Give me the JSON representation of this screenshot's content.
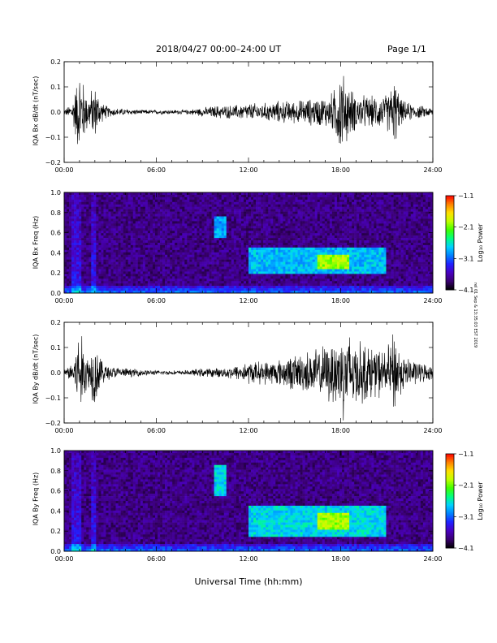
{
  "header": {
    "title": "2018/04/27   00:00–24:00 UT",
    "page": "Page 1/1"
  },
  "xlabel": "Universal Time (hh:mm)",
  "credit": "rel 01 Sep & 13:35:03 EST 2019",
  "colors": {
    "colormap": [
      "#000000",
      "#3a0070",
      "#4a00c0",
      "#2020ff",
      "#0080ff",
      "#00d0ff",
      "#00ff80",
      "#40ff00",
      "#c0ff00",
      "#ffe000",
      "#ff8000",
      "#ff0000"
    ],
    "trace": "#000000"
  },
  "chart_data": [
    {
      "type": "line",
      "panel": "timeseries",
      "ylabel": "IQA Bx dB/dt (nT/sec)",
      "xticks": [
        "00:00",
        "06:00",
        "12:00",
        "18:00",
        "24:00"
      ],
      "yticks": [
        "0.2",
        "0.1",
        "0.0",
        "−0.1",
        "−0.2"
      ],
      "xlim": [
        0,
        24
      ],
      "ylim": [
        -0.2,
        0.2
      ],
      "amplitude_envelope": {
        "hours": [
          0,
          0.5,
          1.0,
          1.5,
          2.0,
          2.5,
          3,
          4,
          5,
          6,
          7,
          8,
          9,
          10,
          11,
          12,
          13,
          14,
          15,
          16,
          17,
          17.5,
          18,
          18.5,
          19,
          20,
          21,
          21.5,
          22,
          23,
          24
        ],
        "values": [
          0.01,
          0.04,
          0.2,
          0.08,
          0.12,
          0.04,
          0.02,
          0.015,
          0.01,
          0.01,
          0.01,
          0.01,
          0.02,
          0.03,
          0.03,
          0.04,
          0.04,
          0.05,
          0.05,
          0.06,
          0.07,
          0.09,
          0.2,
          0.12,
          0.08,
          0.07,
          0.08,
          0.15,
          0.05,
          0.03,
          0.02
        ]
      }
    },
    {
      "type": "heatmap",
      "panel": "spectrogram",
      "ylabel": "IQA Bx Freq (Hz)",
      "xticks": [
        "00:00",
        "06:00",
        "12:00",
        "18:00",
        "24:00"
      ],
      "yticks": [
        "1.0",
        "0.8",
        "0.6",
        "0.4",
        "0.2",
        "0.0"
      ],
      "xlim": [
        0,
        24
      ],
      "ylim": [
        0,
        1.0
      ],
      "colorbar": {
        "label": "Log₁₀ Power",
        "ticks": [
          "−1.1",
          "−2.1",
          "−3.1",
          "−4.1"
        ],
        "range": [
          -4.1,
          -1.1
        ]
      },
      "features": [
        {
          "hours": [
            9.8,
            10.5
          ],
          "freq_hz": [
            0.55,
            0.75
          ],
          "level": -2.9
        },
        {
          "hours": [
            12,
            21
          ],
          "freq_hz": [
            0.18,
            0.45
          ],
          "level": -2.8
        },
        {
          "hours": [
            16.5,
            18.5
          ],
          "freq_hz": [
            0.25,
            0.38
          ],
          "level": -2.0
        }
      ]
    },
    {
      "type": "line",
      "panel": "timeseries",
      "ylabel": "IQA By dB/dt (nT/sec)",
      "xticks": [
        "00:00",
        "06:00",
        "12:00",
        "18:00",
        "24:00"
      ],
      "yticks": [
        "0.2",
        "0.1",
        "0.0",
        "−0.1",
        "−0.2"
      ],
      "xlim": [
        0,
        24
      ],
      "ylim": [
        -0.2,
        0.2
      ],
      "amplitude_envelope": {
        "hours": [
          0,
          0.5,
          1.0,
          1.5,
          2.0,
          2.5,
          3,
          4,
          5,
          6,
          7,
          8,
          9,
          10,
          11,
          12,
          13,
          14,
          15,
          16,
          17,
          17.5,
          18,
          18.5,
          19,
          20,
          21,
          21.5,
          22,
          23,
          24
        ],
        "values": [
          0.01,
          0.05,
          0.2,
          0.08,
          0.15,
          0.05,
          0.03,
          0.02,
          0.015,
          0.01,
          0.01,
          0.01,
          0.02,
          0.02,
          0.03,
          0.05,
          0.05,
          0.06,
          0.08,
          0.1,
          0.12,
          0.15,
          0.2,
          0.2,
          0.15,
          0.12,
          0.1,
          0.2,
          0.08,
          0.05,
          0.03
        ]
      }
    },
    {
      "type": "heatmap",
      "panel": "spectrogram",
      "ylabel": "IQA By Freq (Hz)",
      "xticks": [
        "00:00",
        "06:00",
        "12:00",
        "18:00",
        "24:00"
      ],
      "yticks": [
        "1.0",
        "0.8",
        "0.6",
        "0.4",
        "0.2",
        "0.0"
      ],
      "xlim": [
        0,
        24
      ],
      "ylim": [
        0,
        1.0
      ],
      "colorbar": {
        "label": "Log₁₀ Power",
        "ticks": [
          "−1.1",
          "−2.1",
          "−3.1",
          "−4.1"
        ],
        "range": [
          -4.1,
          -1.1
        ]
      },
      "features": [
        {
          "hours": [
            9.8,
            10.5
          ],
          "freq_hz": [
            0.55,
            0.85
          ],
          "level": -2.7
        },
        {
          "hours": [
            12,
            21
          ],
          "freq_hz": [
            0.15,
            0.45
          ],
          "level": -2.7
        },
        {
          "hours": [
            16.5,
            18.5
          ],
          "freq_hz": [
            0.22,
            0.38
          ],
          "level": -2.0
        }
      ]
    }
  ]
}
